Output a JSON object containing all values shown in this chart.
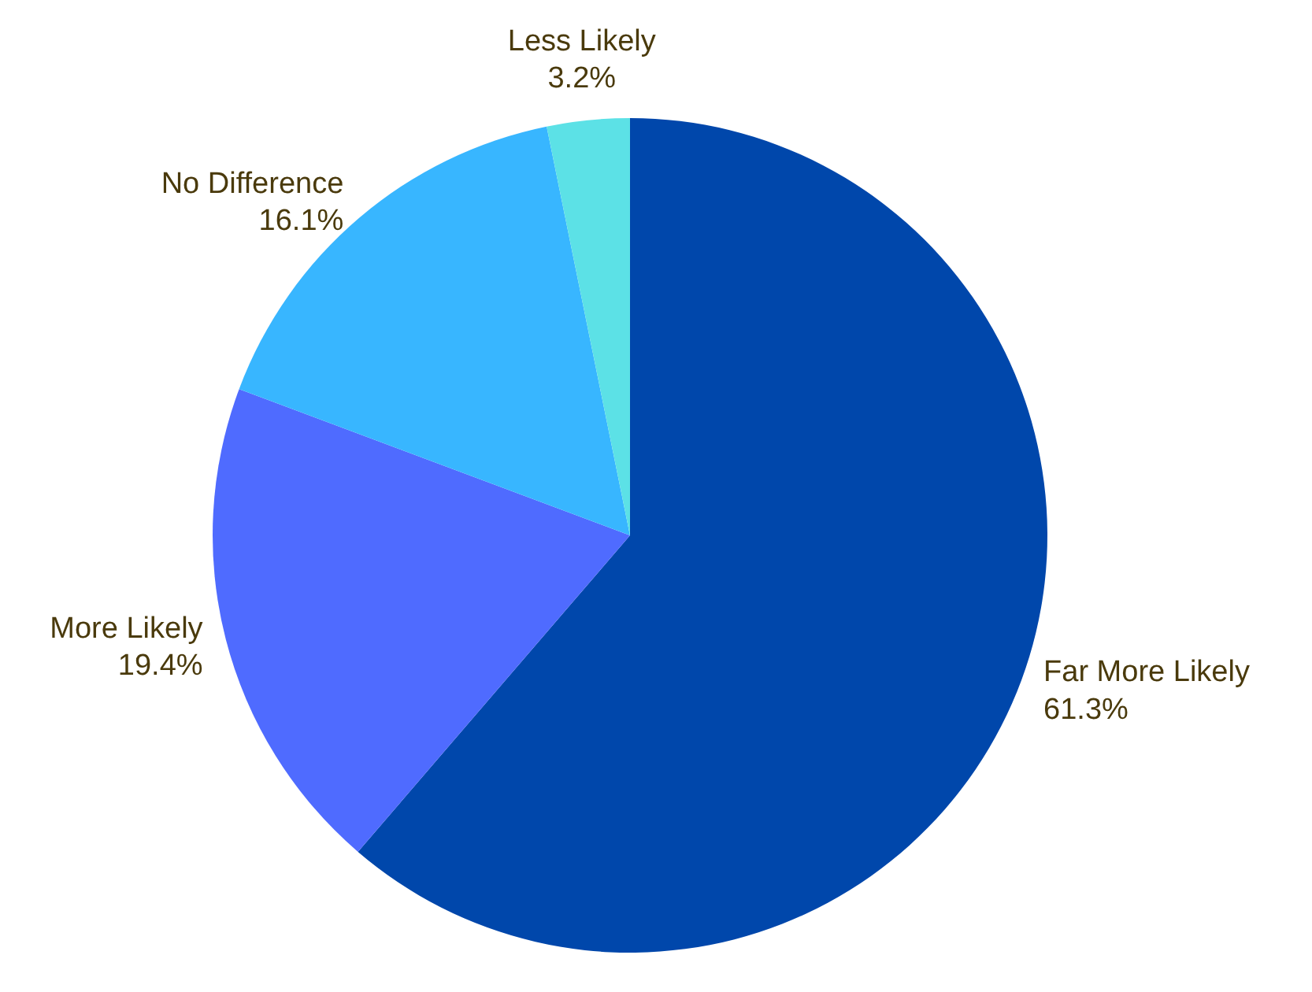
{
  "chart_data": {
    "type": "pie",
    "categories": [
      "Far More Likely",
      "More Likely",
      "No Difference",
      "Less Likely"
    ],
    "values": [
      61.3,
      19.4,
      16.1,
      3.2
    ],
    "value_labels": [
      "61.3%",
      "19.4%",
      "16.1%",
      "3.2%"
    ],
    "colors": [
      "#0047ab",
      "#4f6bff",
      "#38b6ff",
      "#5ce1e6"
    ]
  }
}
